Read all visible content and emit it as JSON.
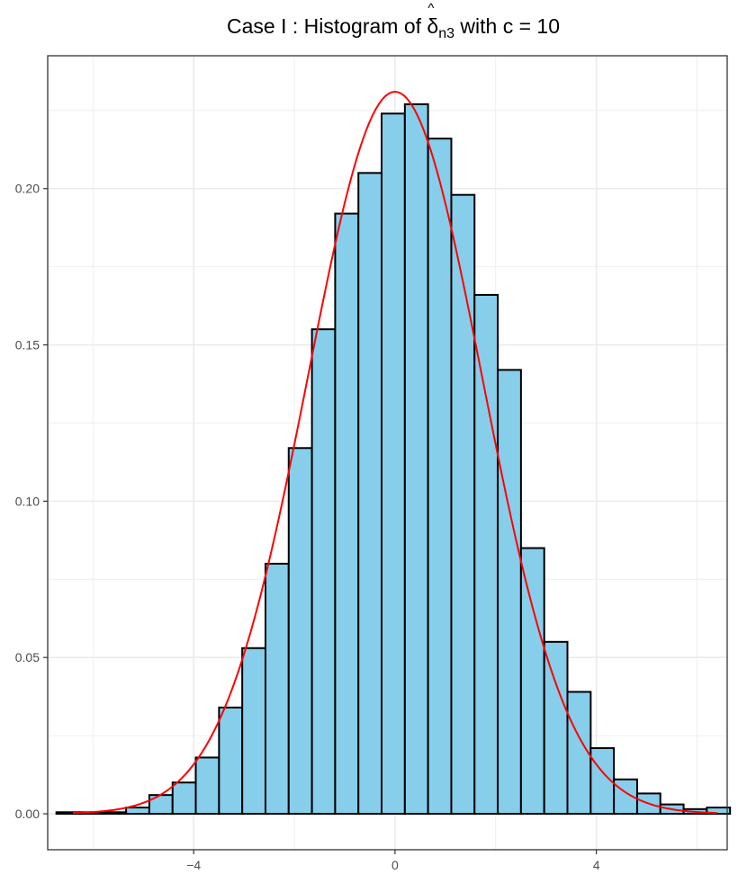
{
  "chart_data": {
    "type": "bar",
    "title": {
      "prefix": "Case I :  Histogram of ",
      "symbol": "δ",
      "hat": "^",
      "subscript": "n3",
      "suffix": " with c = 10"
    },
    "xlabel": "",
    "ylabel": "",
    "xlim": [
      -6.9,
      6.6
    ],
    "ylim": [
      -0.0115,
      0.2425
    ],
    "x_ticks": [
      -4,
      0,
      4
    ],
    "x_tick_labels": [
      "−4",
      "0",
      "4"
    ],
    "y_ticks": [
      0.0,
      0.05,
      0.1,
      0.15,
      0.2
    ],
    "y_tick_labels": [
      "0.00",
      "0.05",
      "0.10",
      "0.15",
      "0.20"
    ],
    "grid": true,
    "bin_width": 0.4615,
    "bins": [
      {
        "x0": -6.727,
        "x1": -6.265,
        "value": 0.0005
      },
      {
        "x0": -6.265,
        "x1": -5.804,
        "value": 0.0005
      },
      {
        "x0": -5.804,
        "x1": -5.342,
        "value": 0.0005
      },
      {
        "x0": -5.342,
        "x1": -4.881,
        "value": 0.002
      },
      {
        "x0": -4.881,
        "x1": -4.419,
        "value": 0.006
      },
      {
        "x0": -4.419,
        "x1": -3.958,
        "value": 0.01
      },
      {
        "x0": -3.958,
        "x1": -3.496,
        "value": 0.018
      },
      {
        "x0": -3.496,
        "x1": -3.035,
        "value": 0.034
      },
      {
        "x0": -3.035,
        "x1": -2.573,
        "value": 0.053
      },
      {
        "x0": -2.573,
        "x1": -2.112,
        "value": 0.08
      },
      {
        "x0": -2.112,
        "x1": -1.65,
        "value": 0.117
      },
      {
        "x0": -1.65,
        "x1": -1.189,
        "value": 0.155
      },
      {
        "x0": -1.189,
        "x1": -0.727,
        "value": 0.192
      },
      {
        "x0": -0.727,
        "x1": -0.266,
        "value": 0.205
      },
      {
        "x0": -0.266,
        "x1": 0.196,
        "value": 0.224
      },
      {
        "x0": 0.196,
        "x1": 0.657,
        "value": 0.227
      },
      {
        "x0": 0.657,
        "x1": 1.119,
        "value": 0.216
      },
      {
        "x0": 1.119,
        "x1": 1.58,
        "value": 0.198
      },
      {
        "x0": 1.58,
        "x1": 2.042,
        "value": 0.166
      },
      {
        "x0": 2.042,
        "x1": 2.503,
        "value": 0.142
      },
      {
        "x0": 2.503,
        "x1": 2.965,
        "value": 0.085
      },
      {
        "x0": 2.965,
        "x1": 3.426,
        "value": 0.055
      },
      {
        "x0": 3.426,
        "x1": 3.888,
        "value": 0.039
      },
      {
        "x0": 3.888,
        "x1": 4.349,
        "value": 0.021
      },
      {
        "x0": 4.349,
        "x1": 4.811,
        "value": 0.011
      },
      {
        "x0": 4.811,
        "x1": 5.272,
        "value": 0.0065
      },
      {
        "x0": 5.272,
        "x1": 5.734,
        "value": 0.003
      },
      {
        "x0": 5.734,
        "x1": 6.195,
        "value": 0.0015
      },
      {
        "x0": 6.195,
        "x1": 6.657,
        "value": 0.002
      }
    ],
    "density_curve": {
      "distribution": "normal",
      "mean": 0,
      "sd": 1.727,
      "x_range": [
        -6.4,
        6.4
      ],
      "peak": 0.231
    },
    "colors": {
      "bar_fill": "#87ceeb",
      "bar_stroke": "#000000",
      "curve": "#ff0000",
      "grid": "#ebebeb",
      "panel_border": "#333333"
    }
  }
}
